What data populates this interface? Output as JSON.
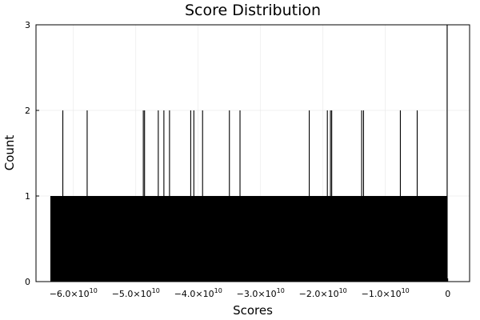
{
  "chart_data": {
    "type": "bar",
    "subtype": "histogram",
    "title": "Score Distribution",
    "xlabel": "Scores",
    "ylabel": "Count",
    "xlim": [
      -66000000000.0,
      3500000000.0
    ],
    "ylim": [
      0,
      3
    ],
    "grid": true,
    "legend": "none",
    "bar_color": "#000000",
    "x_ticks": [
      {
        "value": -60000000000.0,
        "mantissa": "−6.0×10",
        "exp": "10"
      },
      {
        "value": -50000000000.0,
        "mantissa": "−5.0×10",
        "exp": "10"
      },
      {
        "value": -40000000000.0,
        "mantissa": "−4.0×10",
        "exp": "10"
      },
      {
        "value": -30000000000.0,
        "mantissa": "−3.0×10",
        "exp": "10"
      },
      {
        "value": -20000000000.0,
        "mantissa": "−2.0×10",
        "exp": "10"
      },
      {
        "value": -10000000000.0,
        "mantissa": "−1.0×10",
        "exp": "10"
      },
      {
        "value": 0,
        "mantissa": "0",
        "exp": ""
      }
    ],
    "y_ticks": [
      {
        "value": 0,
        "label": "0"
      },
      {
        "value": 1,
        "label": "1"
      },
      {
        "value": 2,
        "label": "2"
      },
      {
        "value": 3,
        "label": "3"
      }
    ],
    "base_block": {
      "x_start": -63700000000.0,
      "x_end": -100000000.0,
      "count": 1
    },
    "peaks": [
      {
        "x": -61700000000.0,
        "count": 2
      },
      {
        "x": -57800000000.0,
        "count": 2
      },
      {
        "x": -48800000000.0,
        "count": 2
      },
      {
        "x": -48600000000.0,
        "count": 2
      },
      {
        "x": -46400000000.0,
        "count": 2
      },
      {
        "x": -45500000000.0,
        "count": 2
      },
      {
        "x": -44600000000.0,
        "count": 2
      },
      {
        "x": -41200000000.0,
        "count": 2
      },
      {
        "x": -40700000000.0,
        "count": 2
      },
      {
        "x": -39300000000.0,
        "count": 2
      },
      {
        "x": -35000000000.0,
        "count": 2
      },
      {
        "x": -33300000000.0,
        "count": 2
      },
      {
        "x": -22200000000.0,
        "count": 2
      },
      {
        "x": -19300000000.0,
        "count": 2
      },
      {
        "x": -18800000000.0,
        "count": 2
      },
      {
        "x": -18600000000.0,
        "count": 2
      },
      {
        "x": -13800000000.0,
        "count": 2
      },
      {
        "x": -13500000000.0,
        "count": 2
      },
      {
        "x": -7600000000.0,
        "count": 2
      },
      {
        "x": -4900000000.0,
        "count": 2
      },
      {
        "x": -100000000.0,
        "count": 3
      }
    ]
  }
}
